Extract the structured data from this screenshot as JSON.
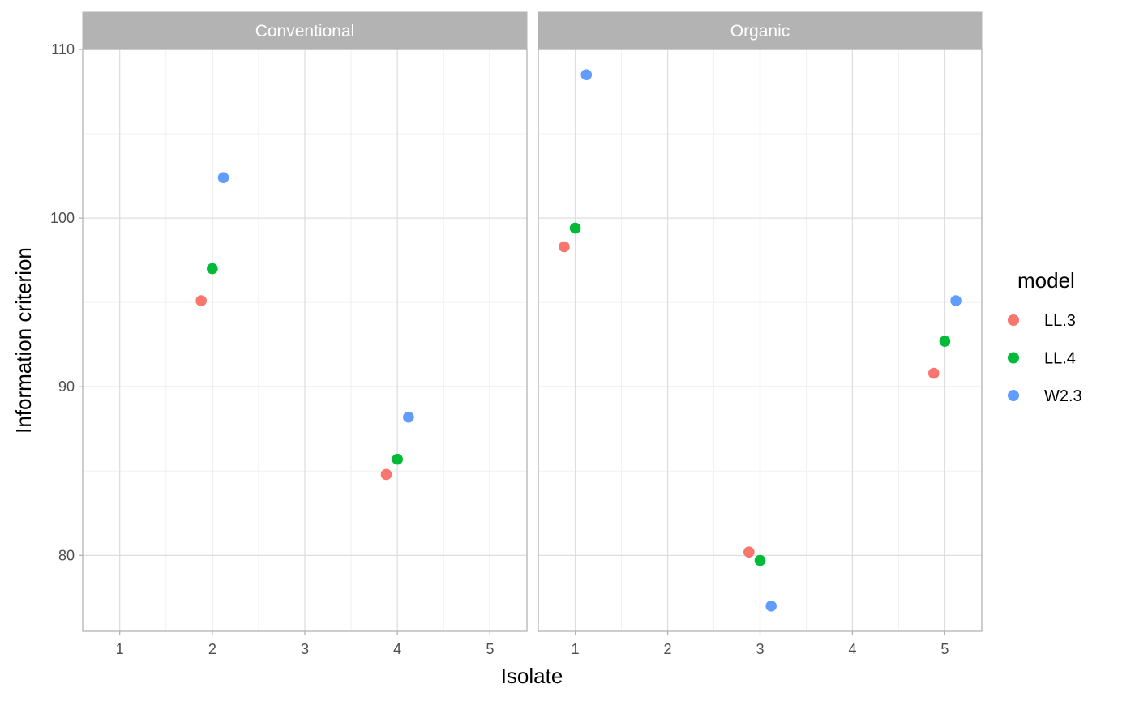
{
  "chart_data": {
    "type": "scatter",
    "xlabel": "Isolate",
    "ylabel": "Information criterion",
    "xlim": [
      0.6,
      5.4
    ],
    "ylim": [
      75.5,
      110.0
    ],
    "x_ticks": [
      1,
      2,
      3,
      4,
      5
    ],
    "y_ticks": [
      80,
      90,
      100,
      110
    ],
    "grid": true,
    "legend": {
      "title": "model",
      "position": "right",
      "entries": [
        {
          "name": "LL.3",
          "color": "#F8766D"
        },
        {
          "name": "LL.4",
          "color": "#00BA38"
        },
        {
          "name": "W2.3",
          "color": "#619CFF"
        }
      ]
    },
    "panels": [
      {
        "label": "Conventional",
        "series": [
          {
            "name": "LL.3",
            "points": [
              {
                "x": 1.88,
                "y": 95.1
              },
              {
                "x": 3.88,
                "y": 84.8
              }
            ]
          },
          {
            "name": "LL.4",
            "points": [
              {
                "x": 2.0,
                "y": 97.0
              },
              {
                "x": 4.0,
                "y": 85.7
              }
            ]
          },
          {
            "name": "W2.3",
            "points": [
              {
                "x": 2.12,
                "y": 102.4
              },
              {
                "x": 4.12,
                "y": 88.2
              }
            ]
          }
        ]
      },
      {
        "label": "Organic",
        "series": [
          {
            "name": "LL.3",
            "points": [
              {
                "x": 0.88,
                "y": 98.3
              },
              {
                "x": 2.88,
                "y": 80.2
              },
              {
                "x": 4.88,
                "y": 90.8
              }
            ]
          },
          {
            "name": "LL.4",
            "points": [
              {
                "x": 1.0,
                "y": 99.4
              },
              {
                "x": 3.0,
                "y": 79.7
              },
              {
                "x": 5.0,
                "y": 92.7
              }
            ]
          },
          {
            "name": "W2.3",
            "points": [
              {
                "x": 1.12,
                "y": 108.5
              },
              {
                "x": 3.12,
                "y": 77.0
              },
              {
                "x": 5.12,
                "y": 95.1
              }
            ]
          }
        ]
      }
    ]
  }
}
